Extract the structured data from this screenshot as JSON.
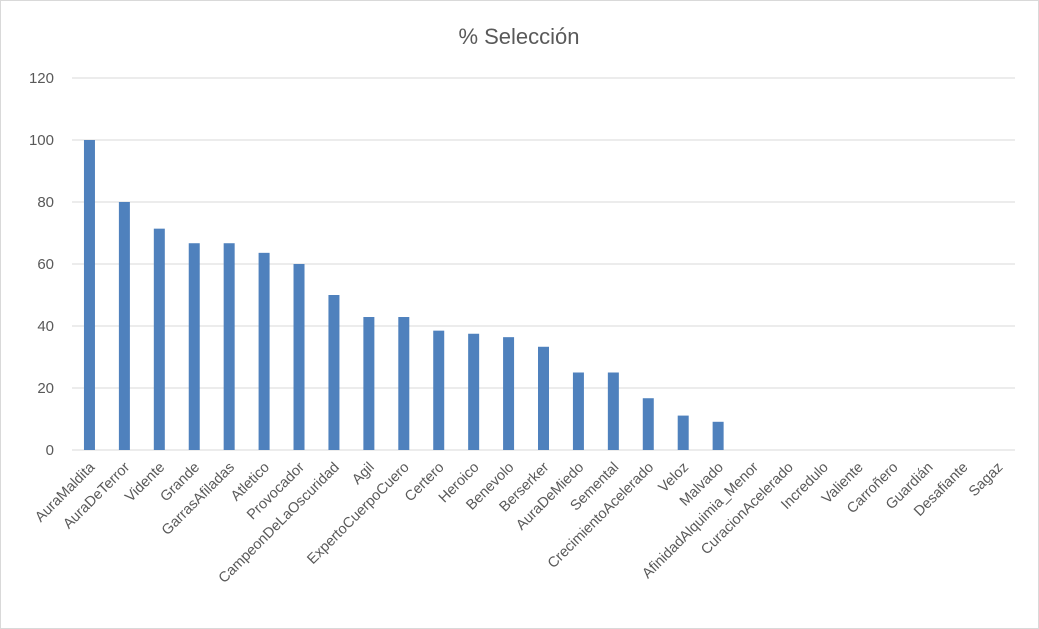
{
  "chart_data": {
    "type": "bar",
    "title": "% Selección",
    "xlabel": "",
    "ylabel": "",
    "ylim": [
      0,
      120
    ],
    "yticks": [
      0,
      20,
      40,
      60,
      80,
      100,
      120
    ],
    "grid": true,
    "legend": "none",
    "bar_color": "#4f81bd",
    "grid_color": "#d9d9d9",
    "categories": [
      "AuraMaldita",
      "AuraDeTerror",
      "Vidente",
      "Grande",
      "GarrasAfiladas",
      "Atletico",
      "Provocador",
      "CampeonDeLaOscuridad",
      "Agil",
      "ExpertoCuerpoCuero",
      "Certero",
      "Heroico",
      "Benevolo",
      "Berserker",
      "AuraDeMiedo",
      "Semental",
      "CrecimientoAcelerado",
      "Veloz",
      "Malvado",
      "AfinidadAlquimia_Menor",
      "CuracionAcelerado",
      "Incredulo",
      "Valiente",
      "Carroñero",
      "Guardián",
      "Desafiante",
      "Sagaz"
    ],
    "values": [
      100,
      80,
      71.4,
      66.7,
      66.7,
      63.6,
      60,
      50,
      42.9,
      42.9,
      38.5,
      37.5,
      36.4,
      33.3,
      25,
      25,
      16.7,
      11.1,
      9.1,
      0,
      0,
      0,
      0,
      0,
      0,
      0,
      0
    ]
  }
}
